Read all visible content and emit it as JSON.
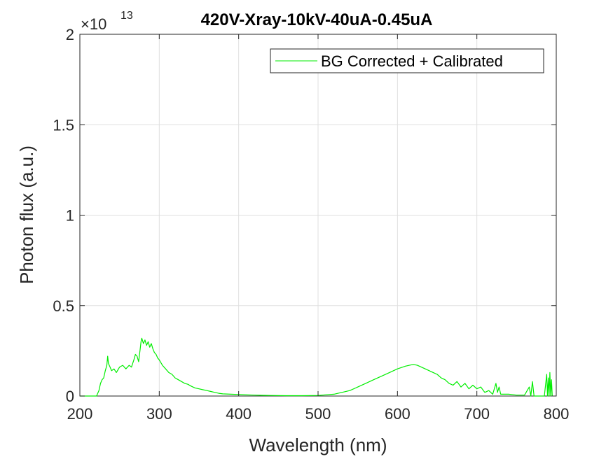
{
  "chart_data": {
    "type": "line",
    "title": "420V-Xray-10kV-40uA-0.45uA",
    "xlabel": "Wavelength (nm)",
    "ylabel": "Photon flux (a.u.)",
    "xlim": [
      200,
      800
    ],
    "ylim": [
      0,
      2
    ],
    "y_multiplier": {
      "base": "×10",
      "exponent": "13"
    },
    "xticks": [
      200,
      300,
      400,
      500,
      600,
      700,
      800
    ],
    "xtick_labels": [
      "200",
      "300",
      "400",
      "500",
      "600",
      "700",
      "800"
    ],
    "yticks": [
      0,
      0.5,
      1,
      1.5,
      2
    ],
    "ytick_labels": [
      "0",
      "0.5",
      "1",
      "1.5",
      "2"
    ],
    "grid": true,
    "legend_position": "top-right",
    "series": [
      {
        "name": "BG Corrected + Calibrated",
        "color": "#00ee00",
        "x": [
          200,
          215,
          221,
          224,
          226,
          228,
          230,
          232,
          234,
          235,
          236,
          238,
          240,
          243,
          246,
          250,
          254,
          258,
          262,
          265,
          268,
          270,
          272,
          274,
          276,
          277,
          278,
          280,
          282,
          284,
          286,
          288,
          290,
          292,
          294,
          296,
          298,
          300,
          304,
          308,
          312,
          316,
          320,
          324,
          328,
          332,
          336,
          340,
          345,
          350,
          355,
          360,
          365,
          370,
          375,
          380,
          390,
          400,
          410,
          420,
          430,
          440,
          460,
          480,
          500,
          520,
          530,
          540,
          550,
          560,
          570,
          580,
          590,
          600,
          610,
          615,
          620,
          625,
          630,
          635,
          640,
          645,
          650,
          655,
          660,
          665,
          670,
          675,
          680,
          685,
          690,
          695,
          700,
          705,
          710,
          715,
          720,
          724,
          726,
          728,
          730,
          740,
          750,
          760,
          766,
          768,
          770,
          772,
          775,
          780,
          785,
          788,
          789,
          790,
          791,
          792,
          793,
          794,
          795
        ],
        "values": [
          0,
          0,
          0,
          0.03,
          0.07,
          0.09,
          0.1,
          0.14,
          0.17,
          0.22,
          0.18,
          0.16,
          0.14,
          0.15,
          0.13,
          0.16,
          0.17,
          0.15,
          0.17,
          0.16,
          0.2,
          0.23,
          0.22,
          0.19,
          0.26,
          0.3,
          0.32,
          0.29,
          0.31,
          0.28,
          0.3,
          0.27,
          0.29,
          0.26,
          0.24,
          0.23,
          0.21,
          0.2,
          0.17,
          0.15,
          0.13,
          0.12,
          0.1,
          0.09,
          0.08,
          0.07,
          0.065,
          0.055,
          0.045,
          0.04,
          0.035,
          0.03,
          0.025,
          0.02,
          0.015,
          0.012,
          0.01,
          0.008,
          0.006,
          0.005,
          0.004,
          0.003,
          0.002,
          0.002,
          0.003,
          0.01,
          0.02,
          0.03,
          0.05,
          0.07,
          0.09,
          0.11,
          0.13,
          0.15,
          0.165,
          0.17,
          0.175,
          0.17,
          0.16,
          0.15,
          0.14,
          0.13,
          0.12,
          0.1,
          0.09,
          0.07,
          0.06,
          0.08,
          0.05,
          0.07,
          0.04,
          0.06,
          0.04,
          0.05,
          0.02,
          0.03,
          0.01,
          0.07,
          0.02,
          0.05,
          0.01,
          0.01,
          0.005,
          0.005,
          0.05,
          0.0,
          0.08,
          0.0,
          0.0,
          0.0,
          0.0,
          0.12,
          0.0,
          0.1,
          0.0,
          0.13,
          0.0,
          0.09,
          0.0
        ]
      }
    ]
  }
}
